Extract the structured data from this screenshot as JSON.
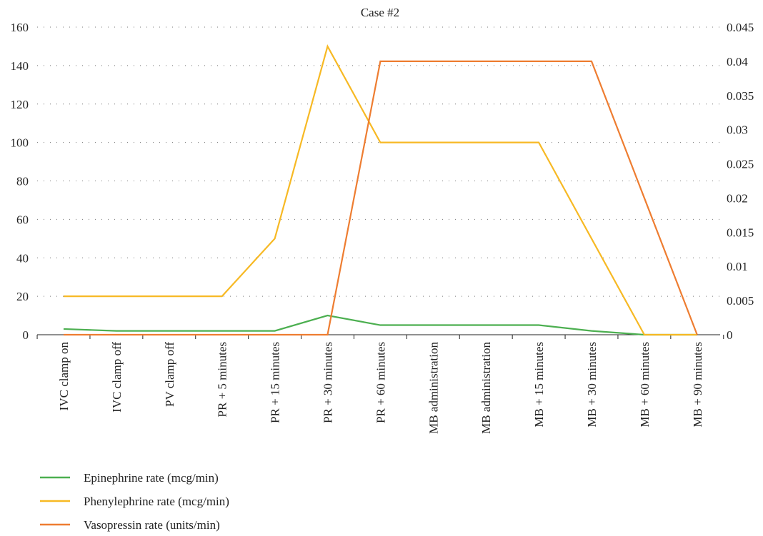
{
  "chart_data": {
    "type": "line",
    "title": "Case #2",
    "categories": [
      "IVC clamp on",
      "IVC clamp off",
      "PV clamp off",
      "PR + 5 minutes",
      "PR + 15 minutes",
      "PR + 30 minutes",
      "PR + 60 minutes",
      "MB administration",
      "MB administration",
      "MB + 15 minutes",
      "MB + 30 minutes",
      "MB + 60 minutes",
      "MB + 90 minutes"
    ],
    "y_left": {
      "min": 0,
      "max": 160,
      "ticks": [
        "0",
        "20",
        "40",
        "60",
        "80",
        "100",
        "120",
        "140",
        "160"
      ]
    },
    "y_right": {
      "min": 0,
      "max": 0.045,
      "ticks": [
        "0",
        "0.005",
        "0.01",
        "0.015",
        "0.02",
        "0.025",
        "0.03",
        "0.035",
        "0.04",
        "0.045"
      ]
    },
    "grid": "dotted horizontal",
    "legend_position": "bottom-left",
    "series": [
      {
        "name": "Epinephrine rate (mcg/min)",
        "axis": "left",
        "color": "#4caf50",
        "values": [
          3,
          2,
          2,
          2,
          2,
          10,
          5,
          5,
          5,
          5,
          2,
          0,
          0
        ]
      },
      {
        "name": "Phenylephrine rate (mcg/min)",
        "axis": "left",
        "color": "#f7b924",
        "values": [
          20,
          20,
          20,
          20,
          50,
          150,
          100,
          100,
          100,
          100,
          50,
          0,
          0
        ]
      },
      {
        "name": "Vasopressin rate (units/min)",
        "axis": "right",
        "color": "#ee7d31",
        "values": [
          0,
          0,
          0,
          0,
          0,
          0,
          0.04,
          0.04,
          0.04,
          0.04,
          0.04,
          0.02,
          0
        ]
      }
    ]
  }
}
